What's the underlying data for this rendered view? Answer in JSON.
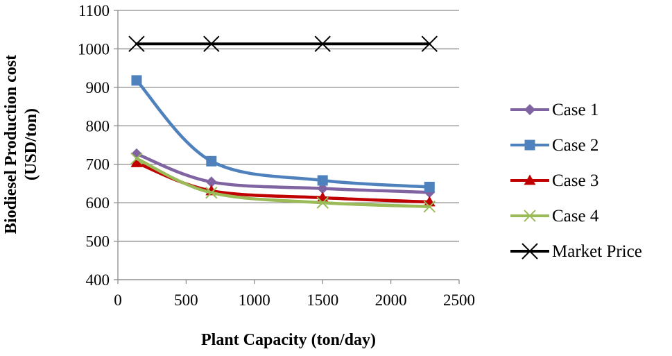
{
  "chart_data": {
    "type": "line",
    "title": "",
    "xlabel": "Plant Capacity  (ton/day)",
    "ylabel_line1": "Biodiesel Production  cost",
    "ylabel_line2": "(USD/ton)",
    "xlim": [
      0,
      2500
    ],
    "ylim": [
      400,
      1100
    ],
    "x_ticks": [
      0,
      500,
      1000,
      1500,
      2000,
      2500
    ],
    "y_ticks": [
      400,
      500,
      600,
      700,
      800,
      900,
      1000,
      1100
    ],
    "grid": "horizontal",
    "legend_position": "right",
    "series": [
      {
        "name": "Case 1",
        "color": "#8064A2",
        "marker": "diamond",
        "x": [
          137,
          685,
          1500,
          2283
        ],
        "values": [
          727,
          654,
          637,
          627
        ]
      },
      {
        "name": "Case 2",
        "color": "#4F81BD",
        "marker": "square",
        "x": [
          137,
          685,
          1500,
          2283
        ],
        "values": [
          918,
          708,
          658,
          641
        ]
      },
      {
        "name": "Case 3",
        "color": "#C00000",
        "marker": "triangle",
        "x": [
          137,
          685,
          1500,
          2283
        ],
        "values": [
          704,
          631,
          613,
          602
        ]
      },
      {
        "name": "Case 4",
        "color": "#9BBB59",
        "marker": "x",
        "x": [
          137,
          685,
          1500,
          2283
        ],
        "values": [
          715,
          626,
          600,
          590
        ]
      },
      {
        "name": "Market Price",
        "color": "#000000",
        "marker": "x",
        "x": [
          137,
          685,
          1500,
          2283
        ],
        "values": [
          1013,
          1013,
          1013,
          1013
        ]
      }
    ]
  }
}
